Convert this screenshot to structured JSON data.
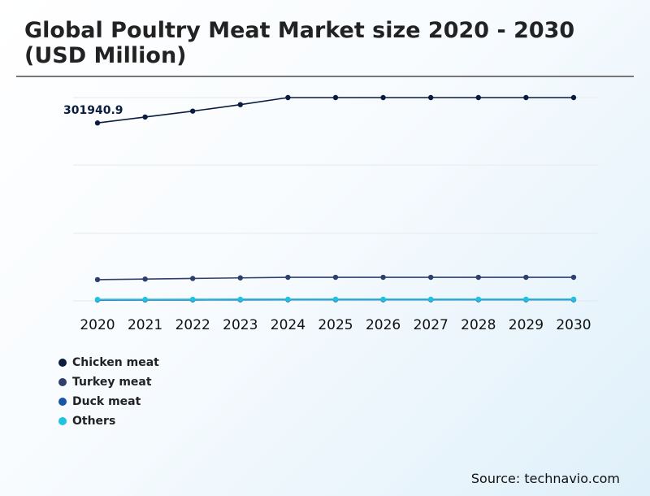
{
  "title": "Global Poultry Meat Market size 2020 - 2030 (USD Million)",
  "source": "Source: technavio.com",
  "chart_data": {
    "type": "line",
    "title": "Global Poultry Meat Market size 2020 - 2030 (USD Million)",
    "xlabel": "",
    "ylabel": "",
    "categories": [
      "2020",
      "2021",
      "2022",
      "2023",
      "2024",
      "2025",
      "2026",
      "2027",
      "2028",
      "2029",
      "2030"
    ],
    "ylim": [
      0,
      400000
    ],
    "grid": true,
    "legend_position": "bottom-left",
    "annotation": {
      "text": "301940.9",
      "series": "Chicken meat",
      "category": "2020"
    },
    "series": [
      {
        "name": "Chicken meat",
        "color": "#0b1d3f",
        "values": [
          301940.9,
          312000,
          322000,
          333000,
          345000,
          345000,
          345000,
          345000,
          345000,
          345000,
          345000
        ]
      },
      {
        "name": "Turkey meat",
        "color": "#2e3f6e",
        "values": [
          36000,
          37000,
          38000,
          39000,
          40000,
          40000,
          40000,
          40000,
          40000,
          40000,
          40000
        ]
      },
      {
        "name": "Duck meat",
        "color": "#1556a8",
        "values": [
          1500,
          1600,
          1700,
          1800,
          1900,
          1900,
          1900,
          1900,
          1900,
          1900,
          1900
        ]
      },
      {
        "name": "Others",
        "color": "#1fc3e0",
        "values": [
          2500,
          2600,
          2700,
          2800,
          2900,
          2900,
          2900,
          2900,
          2900,
          2900,
          2900
        ]
      }
    ]
  }
}
